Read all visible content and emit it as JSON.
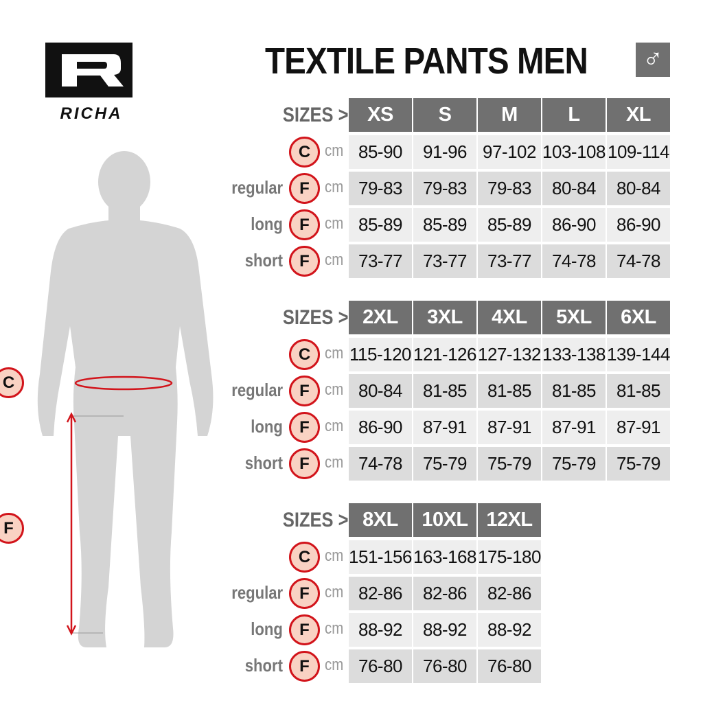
{
  "brand": "RICHA",
  "title": "TEXTILE PANTS MEN",
  "gender_icon": "male-symbol-icon",
  "sizes_label": "SIZES >",
  "unit": "cm",
  "figure_markers": {
    "waist": "C",
    "leg": "F"
  },
  "colors": {
    "header": "#707070",
    "accent": "#d2141b",
    "circle_fill": "#f9d2c3",
    "row_light": "#eeeeee",
    "row_dark": "#dcdcdc"
  },
  "rows": [
    {
      "label": "",
      "marker": "C"
    },
    {
      "label": "regular",
      "marker": "F"
    },
    {
      "label": "long",
      "marker": "F"
    },
    {
      "label": "short",
      "marker": "F"
    }
  ],
  "tables": [
    {
      "sizes": [
        "XS",
        "S",
        "M",
        "L",
        "XL"
      ],
      "values": [
        [
          "85-90",
          "91-96",
          "97-102",
          "103-108",
          "109-114"
        ],
        [
          "79-83",
          "79-83",
          "79-83",
          "80-84",
          "80-84"
        ],
        [
          "85-89",
          "85-89",
          "85-89",
          "86-90",
          "86-90"
        ],
        [
          "73-77",
          "73-77",
          "73-77",
          "74-78",
          "74-78"
        ]
      ]
    },
    {
      "sizes": [
        "2XL",
        "3XL",
        "4XL",
        "5XL",
        "6XL"
      ],
      "values": [
        [
          "115-120",
          "121-126",
          "127-132",
          "133-138",
          "139-144"
        ],
        [
          "80-84",
          "81-85",
          "81-85",
          "81-85",
          "81-85"
        ],
        [
          "86-90",
          "87-91",
          "87-91",
          "87-91",
          "87-91"
        ],
        [
          "74-78",
          "75-79",
          "75-79",
          "75-79",
          "75-79"
        ]
      ]
    },
    {
      "sizes": [
        "8XL",
        "10XL",
        "12XL"
      ],
      "values": [
        [
          "151-156",
          "163-168",
          "175-180"
        ],
        [
          "82-86",
          "82-86",
          "82-86"
        ],
        [
          "88-92",
          "88-92",
          "88-92"
        ],
        [
          "76-80",
          "76-80",
          "76-80"
        ]
      ]
    }
  ]
}
